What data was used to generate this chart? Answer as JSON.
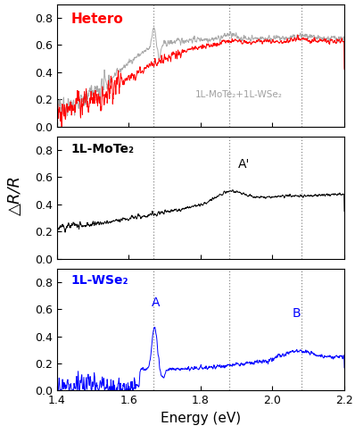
{
  "xlim": [
    1.4,
    2.2
  ],
  "ylim": [
    0,
    0.9
  ],
  "yticks": [
    0,
    0.2,
    0.4,
    0.6,
    0.8
  ],
  "xlabel": "Energy (eV)",
  "ylabel": "△R/R",
  "vlines": [
    1.67,
    1.88,
    2.08
  ],
  "panel1_label": "Hetero",
  "panel1_label_color": "#ff0000",
  "panel2_label": "1L-MoTe₂",
  "panel2_label_color": "#000000",
  "panel3_label": "1L-WSe₂",
  "panel3_label_color": "#0000ff",
  "gray_legend": "1L-MoTe₂+1L-WSe₂",
  "annotation_Aprime": "A'",
  "annotation_A": "A",
  "annotation_B": "B",
  "red_color": "#ff0000",
  "gray_color": "#a0a0a0",
  "black_color": "#000000",
  "blue_color": "#0000ff"
}
